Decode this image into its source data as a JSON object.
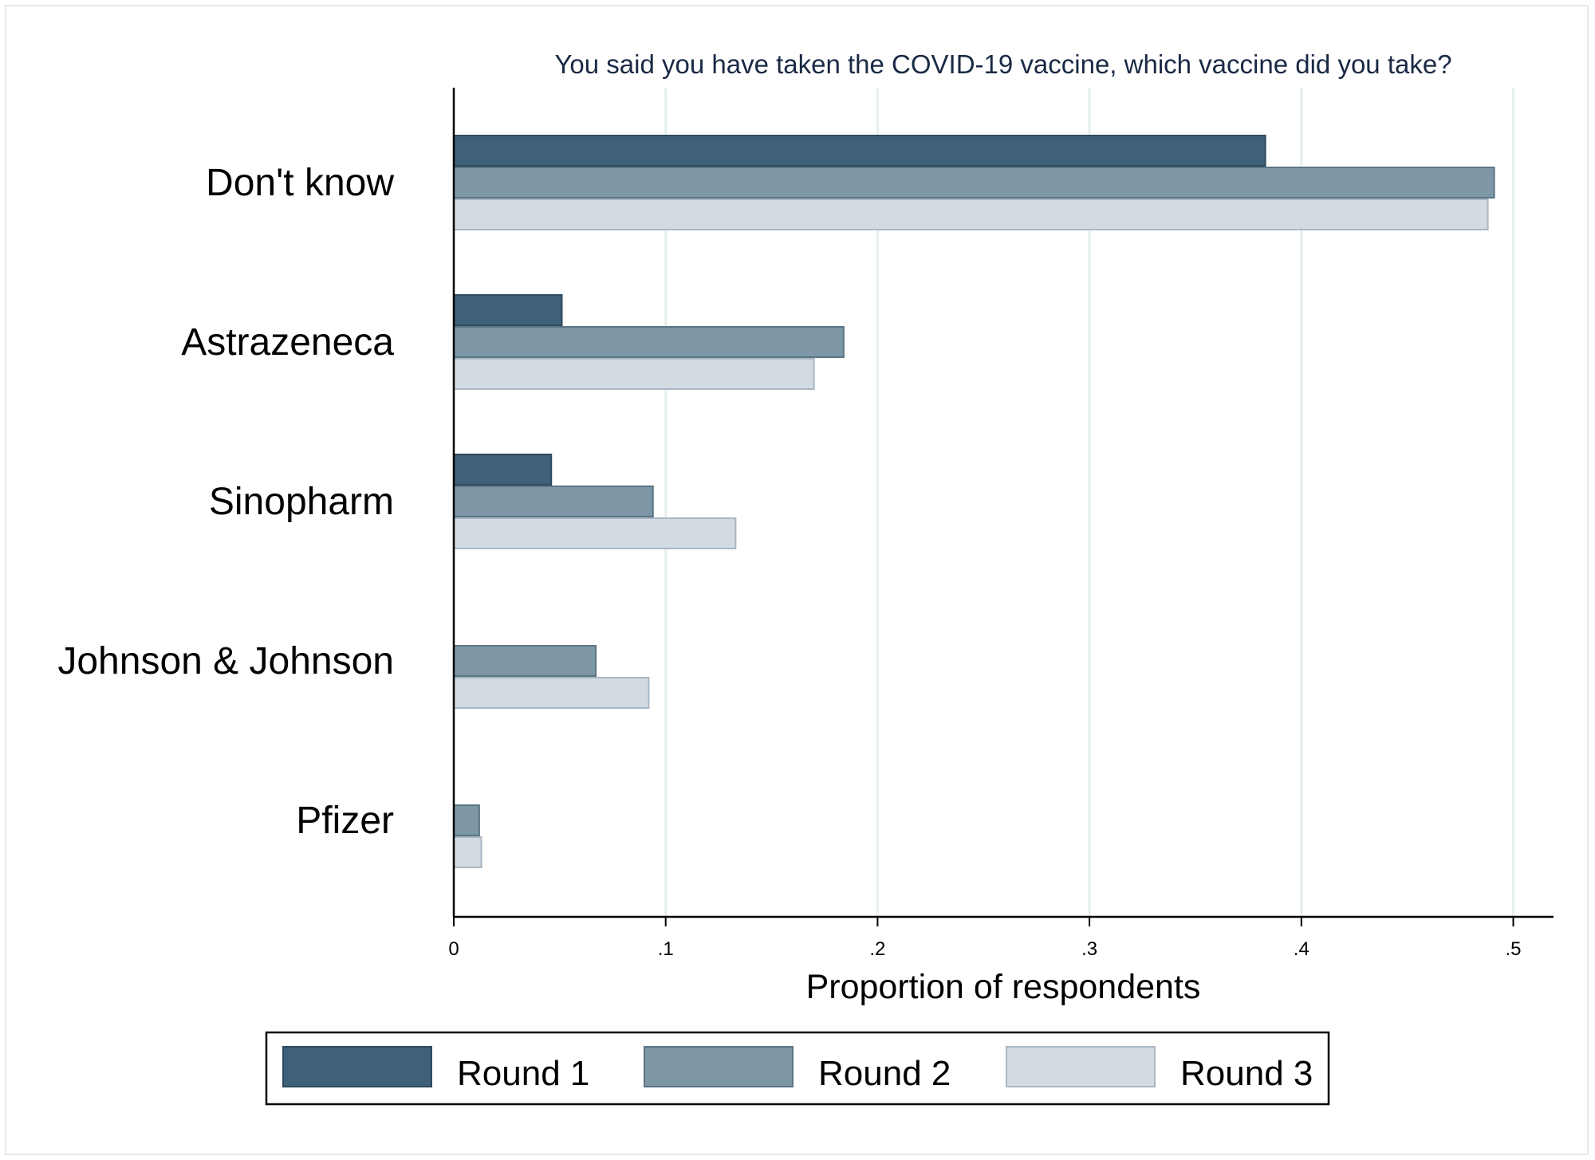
{
  "chart_data": {
    "type": "bar",
    "orientation": "horizontal",
    "title": "You said you have taken the COVID-19 vaccine, which vaccine did you take?",
    "xlabel": "Proportion of respondents",
    "ylabel": "",
    "xlim": [
      0,
      0.52
    ],
    "xticks": [
      {
        "value": 0,
        "label": "0"
      },
      {
        "value": 0.1,
        "label": ".1"
      },
      {
        "value": 0.2,
        "label": ".2"
      },
      {
        "value": 0.3,
        "label": ".3"
      },
      {
        "value": 0.4,
        "label": ".4"
      },
      {
        "value": 0.5,
        "label": ".5"
      }
    ],
    "grid": true,
    "legend_position": "bottom",
    "categories": [
      "Don't know",
      "Astrazeneca",
      "Sinopharm",
      "Johnson & Johnson",
      "Pfizer"
    ],
    "series": [
      {
        "name": "Round 1",
        "color": "#3f6079",
        "values": [
          0.383,
          0.051,
          0.046,
          0,
          0
        ]
      },
      {
        "name": "Round 2",
        "color": "#7d97a6",
        "values": [
          0.491,
          0.184,
          0.094,
          0.067,
          0.012
        ]
      },
      {
        "name": "Round 3",
        "color": "#d3dbe2",
        "values": [
          0.488,
          0.17,
          0.133,
          0.092,
          0.013
        ]
      }
    ]
  }
}
